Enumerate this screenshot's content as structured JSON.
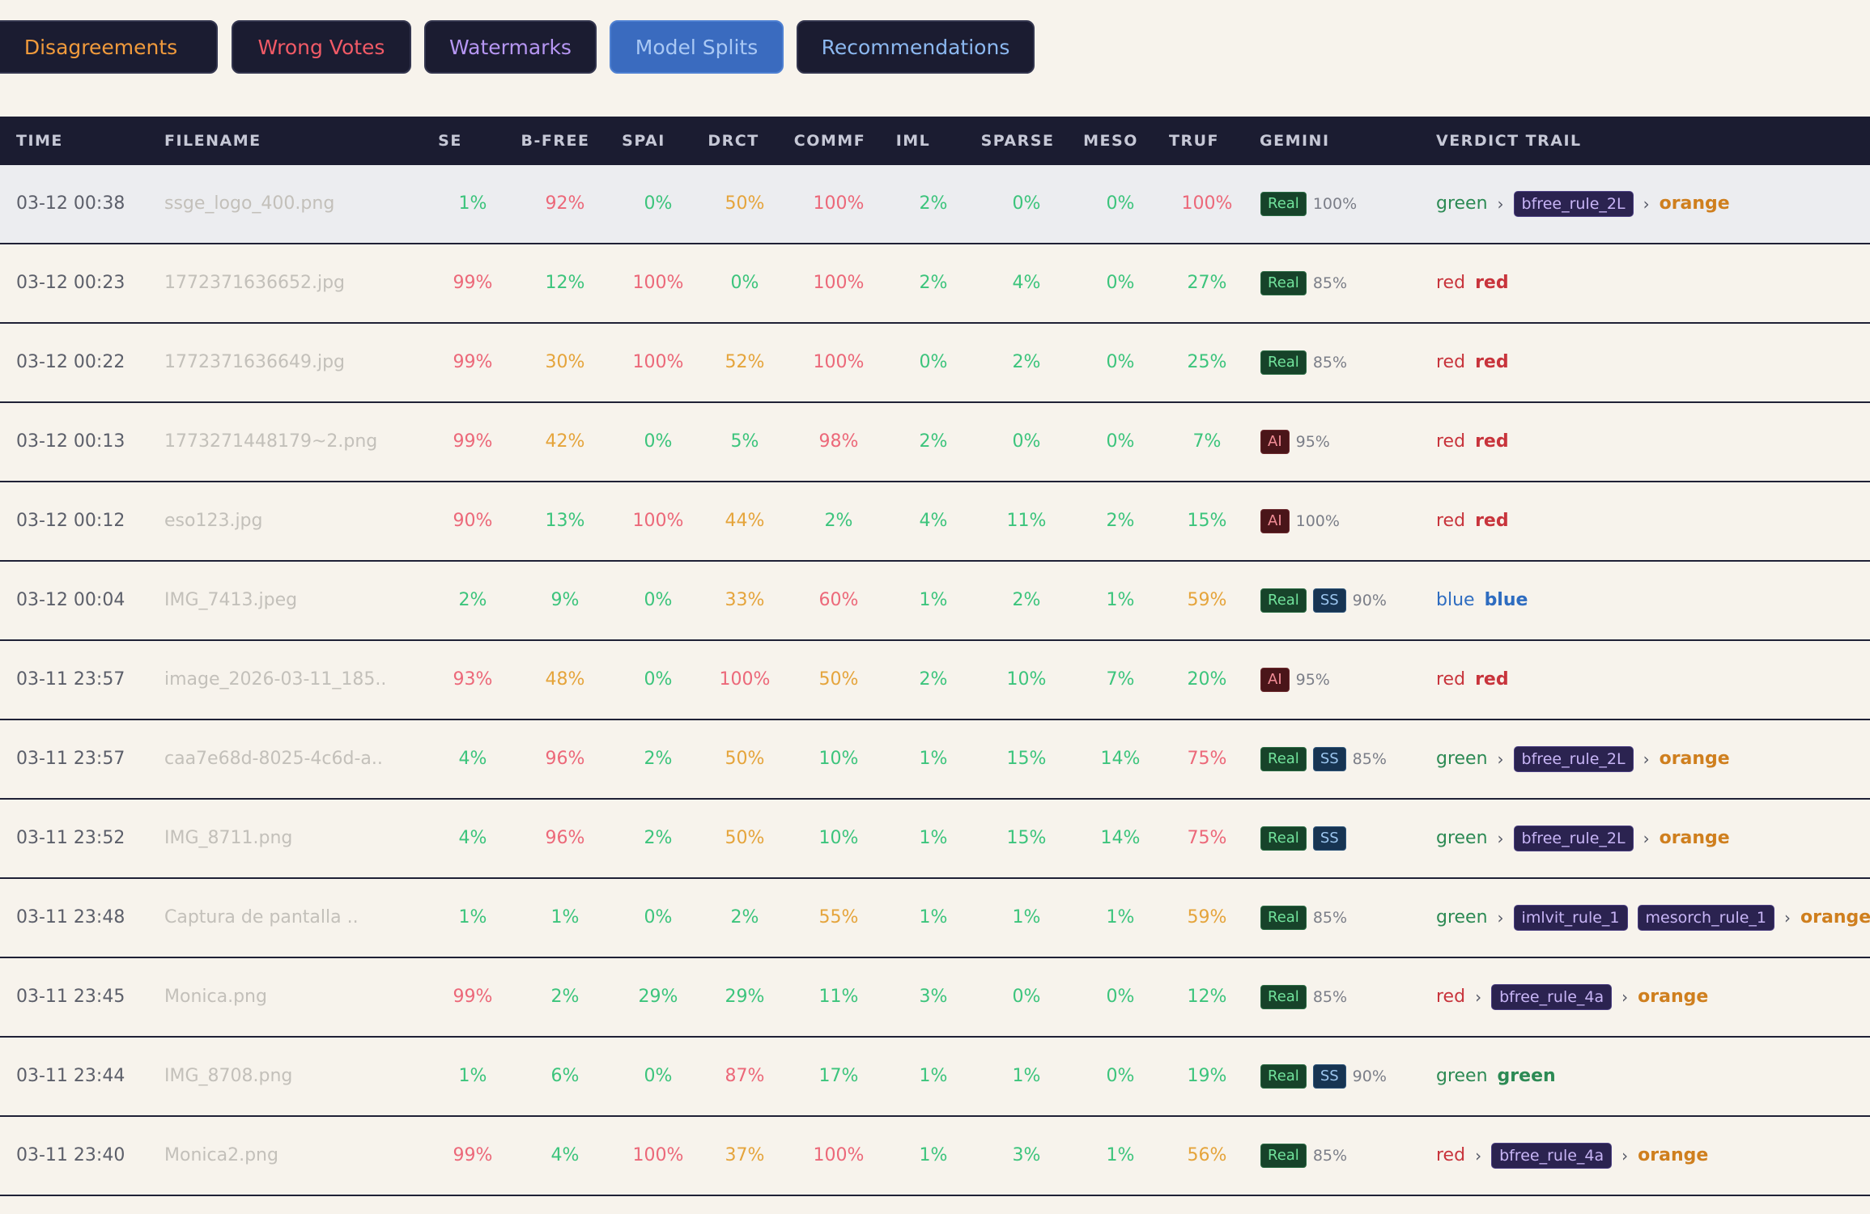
{
  "tabs": [
    {
      "label": "Disagreements",
      "color": "#f09a3c",
      "active": false
    },
    {
      "label": "Wrong Votes",
      "color": "#f15a66",
      "active": false
    },
    {
      "label": "Watermarks",
      "color": "#b696f2",
      "active": false
    },
    {
      "label": "Model Splits",
      "color": "#a9c8f4",
      "active": true
    },
    {
      "label": "Recommendations",
      "color": "#8cb8f0",
      "active": false
    }
  ],
  "columns": [
    "TIME",
    "FILENAME",
    "SE",
    "B-FREE",
    "SPAI",
    "DRCT",
    "COMMF",
    "IML",
    "SPARSE",
    "MESO",
    "TRUF",
    "GEMINI",
    "VERDICT TRAIL"
  ],
  "rows": [
    {
      "time": "03-12 00:38",
      "filename": "ssge_logo_400.png",
      "scores": [
        "1%",
        "92%",
        "0%",
        "50%",
        "100%",
        "2%",
        "0%",
        "0%",
        "100%"
      ],
      "gemini": {
        "badges": [
          "Real"
        ],
        "conf": "100%"
      },
      "trail": {
        "start": "green",
        "rules": [
          "bfree_rule_2L"
        ],
        "final": "orange"
      }
    },
    {
      "time": "03-12 00:23",
      "filename": "1772371636652.jpg",
      "scores": [
        "99%",
        "12%",
        "100%",
        "0%",
        "100%",
        "2%",
        "4%",
        "0%",
        "27%"
      ],
      "gemini": {
        "badges": [
          "Real"
        ],
        "conf": "85%"
      },
      "trail": {
        "start": "red",
        "rules": [],
        "final": "red"
      }
    },
    {
      "time": "03-12 00:22",
      "filename": "1772371636649.jpg",
      "scores": [
        "99%",
        "30%",
        "100%",
        "52%",
        "100%",
        "0%",
        "2%",
        "0%",
        "25%"
      ],
      "gemini": {
        "badges": [
          "Real"
        ],
        "conf": "85%"
      },
      "trail": {
        "start": "red",
        "rules": [],
        "final": "red"
      }
    },
    {
      "time": "03-12 00:13",
      "filename": "1773271448179~2.png",
      "scores": [
        "99%",
        "42%",
        "0%",
        "5%",
        "98%",
        "2%",
        "0%",
        "0%",
        "7%"
      ],
      "gemini": {
        "badges": [
          "AI"
        ],
        "conf": "95%"
      },
      "trail": {
        "start": "red",
        "rules": [],
        "final": "red"
      }
    },
    {
      "time": "03-12 00:12",
      "filename": "eso123.jpg",
      "scores": [
        "90%",
        "13%",
        "100%",
        "44%",
        "2%",
        "4%",
        "11%",
        "2%",
        "15%"
      ],
      "gemini": {
        "badges": [
          "AI"
        ],
        "conf": "100%"
      },
      "trail": {
        "start": "red",
        "rules": [],
        "final": "red"
      }
    },
    {
      "time": "03-12 00:04",
      "filename": "IMG_7413.jpeg",
      "scores": [
        "2%",
        "9%",
        "0%",
        "33%",
        "60%",
        "1%",
        "2%",
        "1%",
        "59%"
      ],
      "gemini": {
        "badges": [
          "Real",
          "SS"
        ],
        "conf": "90%"
      },
      "trail": {
        "start": "blue",
        "rules": [],
        "final": "blue"
      }
    },
    {
      "time": "03-11 23:57",
      "filename": "image_2026-03-11_185..",
      "scores": [
        "93%",
        "48%",
        "0%",
        "100%",
        "50%",
        "2%",
        "10%",
        "7%",
        "20%"
      ],
      "gemini": {
        "badges": [
          "AI"
        ],
        "conf": "95%"
      },
      "trail": {
        "start": "red",
        "rules": [],
        "final": "red"
      }
    },
    {
      "time": "03-11 23:57",
      "filename": "caa7e68d-8025-4c6d-a..",
      "scores": [
        "4%",
        "96%",
        "2%",
        "50%",
        "10%",
        "1%",
        "15%",
        "14%",
        "75%"
      ],
      "gemini": {
        "badges": [
          "Real",
          "SS"
        ],
        "conf": "85%"
      },
      "trail": {
        "start": "green",
        "rules": [
          "bfree_rule_2L"
        ],
        "final": "orange"
      }
    },
    {
      "time": "03-11 23:52",
      "filename": "IMG_8711.png",
      "scores": [
        "4%",
        "96%",
        "2%",
        "50%",
        "10%",
        "1%",
        "15%",
        "14%",
        "75%"
      ],
      "gemini": {
        "badges": [
          "Real",
          "SS"
        ],
        "conf": ""
      },
      "trail": {
        "start": "green",
        "rules": [
          "bfree_rule_2L"
        ],
        "final": "orange"
      }
    },
    {
      "time": "03-11 23:48",
      "filename": "Captura de pantalla ..",
      "scores": [
        "1%",
        "1%",
        "0%",
        "2%",
        "55%",
        "1%",
        "1%",
        "1%",
        "59%"
      ],
      "gemini": {
        "badges": [
          "Real"
        ],
        "conf": "85%"
      },
      "trail": {
        "start": "green",
        "rules": [
          "imlvit_rule_1",
          "mesorch_rule_1"
        ],
        "final": "orange"
      }
    },
    {
      "time": "03-11 23:45",
      "filename": "Monica.png",
      "scores": [
        "99%",
        "2%",
        "29%",
        "29%",
        "11%",
        "3%",
        "0%",
        "0%",
        "12%"
      ],
      "gemini": {
        "badges": [
          "Real"
        ],
        "conf": "85%"
      },
      "trail": {
        "start": "red",
        "rules": [
          "bfree_rule_4a"
        ],
        "final": "orange"
      }
    },
    {
      "time": "03-11 23:44",
      "filename": "IMG_8708.png",
      "scores": [
        "1%",
        "6%",
        "0%",
        "87%",
        "17%",
        "1%",
        "1%",
        "0%",
        "19%"
      ],
      "gemini": {
        "badges": [
          "Real",
          "SS"
        ],
        "conf": "90%"
      },
      "trail": {
        "start": "green",
        "rules": [],
        "final": "green"
      }
    },
    {
      "time": "03-11 23:40",
      "filename": "Monica2.png",
      "scores": [
        "99%",
        "4%",
        "100%",
        "37%",
        "100%",
        "1%",
        "3%",
        "1%",
        "56%"
      ],
      "gemini": {
        "badges": [
          "Real"
        ],
        "conf": "85%"
      },
      "trail": {
        "start": "red",
        "rules": [
          "bfree_rule_4a"
        ],
        "final": "orange"
      }
    }
  ],
  "icons": {
    "trail_separator": "chevron-right-icon",
    "trail_separator_glyph": "›"
  },
  "colors": {
    "score_low": "#3cc47c",
    "score_mid": "#e5a43b",
    "score_high": "#ec6879"
  }
}
